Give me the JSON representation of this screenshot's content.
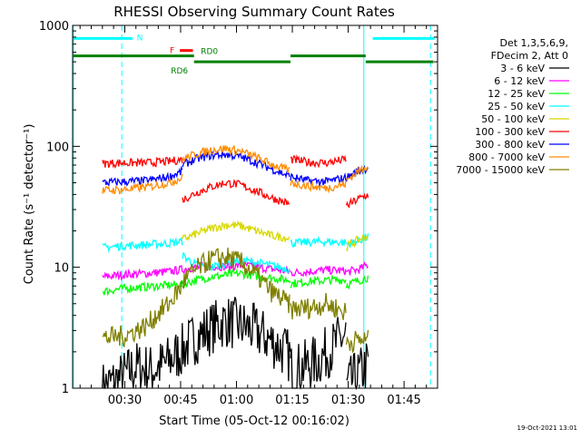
{
  "chart_data": {
    "type": "line",
    "title": "RHESSI Observing Summary Count Rates",
    "xlabel": "Start Time (05-Oct-12 00:16:02)",
    "ylabel": "Count Rate (s⁻¹ detector⁻¹)",
    "yscale": "log",
    "ylim": [
      1,
      1000
    ],
    "xlim_minutes": [
      16.0,
      114.0
    ],
    "x_ticks": [
      {
        "minute": 30,
        "label": "00:30"
      },
      {
        "minute": 45,
        "label": "00:45"
      },
      {
        "minute": 60,
        "label": "01:00"
      },
      {
        "minute": 75,
        "label": "01:15"
      },
      {
        "minute": 90,
        "label": "01:30"
      },
      {
        "minute": 105,
        "label": "01:45"
      }
    ],
    "y_ticks": [
      {
        "value": 1,
        "label": "1"
      },
      {
        "value": 10,
        "label": "10"
      },
      {
        "value": 100,
        "label": "100"
      },
      {
        "value": 1000,
        "label": "1000"
      }
    ],
    "legend_header": [
      "Det 1,3,5,6,9,",
      "FDecim 2, Att 0"
    ],
    "legend_position": "right",
    "timestamp": "19-Oct-2021 13:01",
    "series": [
      {
        "name": "3 - 6 keV",
        "color": "#000000",
        "segments": [
          {
            "t": [
              24,
              29,
              33,
              37,
              41,
              45,
              49,
              53,
              57,
              61,
              65,
              69,
              73,
              74.5
            ],
            "y": [
              1,
              1.2,
              1.5,
              1.4,
              1.6,
              2.0,
              2.6,
              3.1,
              3.6,
              3.3,
              3.0,
              2.5,
              2.0,
              1.8
            ]
          },
          {
            "t": [
              74.5,
              78,
              82,
              86,
              89.5
            ],
            "y": [
              1.4,
              1.5,
              1.7,
              2.2,
              2.8
            ]
          },
          {
            "t": [
              89.5,
              90.5,
              93,
              95.5
            ],
            "y": [
              1,
              1.1,
              1.3,
              1.6
            ]
          }
        ]
      },
      {
        "name": "6 - 12 keV",
        "color": "#ff00ff",
        "segments": [
          {
            "t": [
              24,
              30,
              36,
              42,
              45.5,
              48,
              53,
              58,
              62,
              66,
              70,
              74.5
            ],
            "y": [
              8.3,
              8.7,
              8.9,
              9.2,
              9.6,
              9.9,
              10.2,
              10.1,
              10.4,
              10.0,
              9.6,
              9.2
            ]
          },
          {
            "t": [
              74.5,
              79,
              84,
              89.5
            ],
            "y": [
              9.0,
              9.2,
              9.5,
              9.3
            ]
          },
          {
            "t": [
              89.5,
              93,
              95.5
            ],
            "y": [
              9.1,
              9.6,
              10.6
            ]
          }
        ]
      },
      {
        "name": "12 - 25 keV",
        "color": "#00ff00",
        "segments": [
          {
            "t": [
              24,
              30,
              36,
              42,
              45.5,
              49,
              53,
              57,
              61,
              65,
              69,
              74.5
            ],
            "y": [
              6.3,
              6.7,
              6.9,
              7.1,
              7.2,
              7.8,
              8.3,
              8.6,
              8.9,
              8.5,
              8.2,
              7.8
            ]
          },
          {
            "t": [
              74.5,
              79,
              84,
              89.5
            ],
            "y": [
              7.3,
              7.6,
              7.8,
              7.9
            ]
          },
          {
            "t": [
              89.5,
              93,
              95.5
            ],
            "y": [
              7.1,
              7.8,
              8.3
            ]
          }
        ]
      },
      {
        "name": "25 - 50 keV",
        "color": "#00ffff",
        "segments": [
          {
            "t": [
              24,
              30,
              36,
              42,
              45.5
            ],
            "y": [
              14.5,
              15.1,
              15.4,
              15.8,
              16.4
            ]
          },
          {
            "t": [
              45.5,
              49,
              53,
              57,
              61,
              65,
              69,
              74.5
            ],
            "y": [
              12.5,
              10.5,
              10.0,
              10.8,
              11.5,
              11.0,
              10.4,
              9.6
            ]
          },
          {
            "t": [
              74.5,
              79,
              84,
              89.5
            ],
            "y": [
              15.8,
              16.1,
              16.3,
              16.0
            ]
          },
          {
            "t": [
              89.5,
              93,
              95.5
            ],
            "y": [
              15.5,
              16.6,
              18.0
            ]
          }
        ]
      },
      {
        "name": "50 - 100 keV",
        "color": "#d8d800",
        "segments": [
          {
            "t": [
              45.5,
              49,
              53,
              57,
              61,
              65,
              69,
              74.5
            ],
            "y": [
              17.0,
              18.8,
              20.8,
              22.4,
              22.0,
              20.1,
              18.4,
              17.3
            ]
          },
          {
            "t": [
              89.5,
              93,
              95.5
            ],
            "y": [
              14.8,
              17.0,
              18.2
            ]
          }
        ]
      },
      {
        "name": "100 - 300 keV",
        "color": "#ff0000",
        "segments": [
          {
            "t": [
              24,
              30,
              36,
              42,
              45.5
            ],
            "y": [
              72,
              73,
              73,
              75,
              78
            ]
          },
          {
            "t": [
              45.5,
              49,
              53,
              57,
              61,
              65,
              69,
              74.5
            ],
            "y": [
              36,
              41,
              46,
              50,
              48,
              43,
              38,
              33
            ]
          },
          {
            "t": [
              74.5,
              79,
              84,
              89.5
            ],
            "y": [
              78,
              74,
              73,
              78
            ]
          },
          {
            "t": [
              89.5,
              93,
              95.5
            ],
            "y": [
              32,
              37,
              40
            ]
          }
        ]
      },
      {
        "name": "300 - 800 keV",
        "color": "#0000ff",
        "segments": [
          {
            "t": [
              24,
              30,
              36,
              42,
              45.5
            ],
            "y": [
              50,
              51,
              52,
              56,
              62
            ]
          },
          {
            "t": [
              45.5,
              49,
              53,
              57,
              61,
              65,
              69,
              74.5
            ],
            "y": [
              70,
              78,
              84,
              86,
              82,
              74,
              66,
              56
            ]
          },
          {
            "t": [
              74.5,
              79,
              84,
              89.5
            ],
            "y": [
              56,
              52,
              51,
              55
            ]
          },
          {
            "t": [
              89.5,
              93,
              95.5
            ],
            "y": [
              55,
              63,
              67
            ]
          }
        ]
      },
      {
        "name": "800 - 7000 keV",
        "color": "#ff8c00",
        "segments": [
          {
            "t": [
              24,
              30,
              36,
              42,
              45.5
            ],
            "y": [
              43,
              44,
              46,
              50,
              55
            ]
          },
          {
            "t": [
              45.5,
              49,
              53,
              57,
              61,
              65,
              69,
              74.5
            ],
            "y": [
              78,
              86,
              93,
              96,
              91,
              82,
              72,
              62
            ]
          },
          {
            "t": [
              74.5,
              79,
              84,
              89.5
            ],
            "y": [
              50,
              47,
              45,
              49
            ]
          },
          {
            "t": [
              89.5,
              93,
              95.5
            ],
            "y": [
              52,
              63,
              70
            ]
          }
        ]
      },
      {
        "name": "7000 - 15000 keV",
        "color": "#808000",
        "segments": [
          {
            "t": [
              24,
              30,
              36,
              42,
              45.5
            ],
            "y": [
              2.6,
              2.7,
              3.3,
              5.0,
              7.0
            ]
          },
          {
            "t": [
              45.5,
              49,
              53,
              57,
              61,
              65,
              69,
              74.5
            ],
            "y": [
              7.5,
              9.5,
              11.5,
              12.2,
              11.0,
              8.8,
              6.4,
              4.8
            ]
          },
          {
            "t": [
              74.5,
              79,
              84,
              89.5
            ],
            "y": [
              4.5,
              4.6,
              5.0,
              4.2
            ]
          },
          {
            "t": [
              89.5,
              93,
              95.5
            ],
            "y": [
              2.4,
              2.5,
              2.5
            ]
          }
        ]
      }
    ],
    "annotations": {
      "night_lines": [
        {
          "label": "",
          "t_start": 16.2,
          "t_end": 16.2
        },
        {
          "label": "",
          "t_start": 29.2,
          "t_end": 29.2
        },
        {
          "label": "",
          "t_start": 94.2,
          "t_end": 94.2
        },
        {
          "label": "",
          "t_start": 112.1,
          "t_end": 112.1
        }
      ],
      "bars": [
        {
          "label": "N",
          "color": "#00ffff",
          "t_start": 16.2,
          "t_end": 32.1,
          "level": 780
        },
        {
          "label": "",
          "color": "#00ffff",
          "t_start": 96.6,
          "t_end": 113.2,
          "level": 780
        },
        {
          "label": "F",
          "color": "#ff0000",
          "t_start": 44.8,
          "t_end": 48.3,
          "level": 620
        },
        {
          "label": "",
          "color": "#008000",
          "t_start": 16.2,
          "t_end": 48.6,
          "level": 560
        },
        {
          "label": "RD0",
          "color": "#008000",
          "t_start": 48.6,
          "t_end": 48.6,
          "level": 560
        },
        {
          "label": "RD6",
          "color": "#008000",
          "t_start": 48.6,
          "t_end": 74.5,
          "level": 500
        },
        {
          "label": "",
          "color": "#008000",
          "t_start": 74.5,
          "t_end": 94.7,
          "level": 560
        },
        {
          "label": "",
          "color": "#008000",
          "t_start": 94.7,
          "t_end": 112.9,
          "level": 500
        }
      ]
    }
  }
}
